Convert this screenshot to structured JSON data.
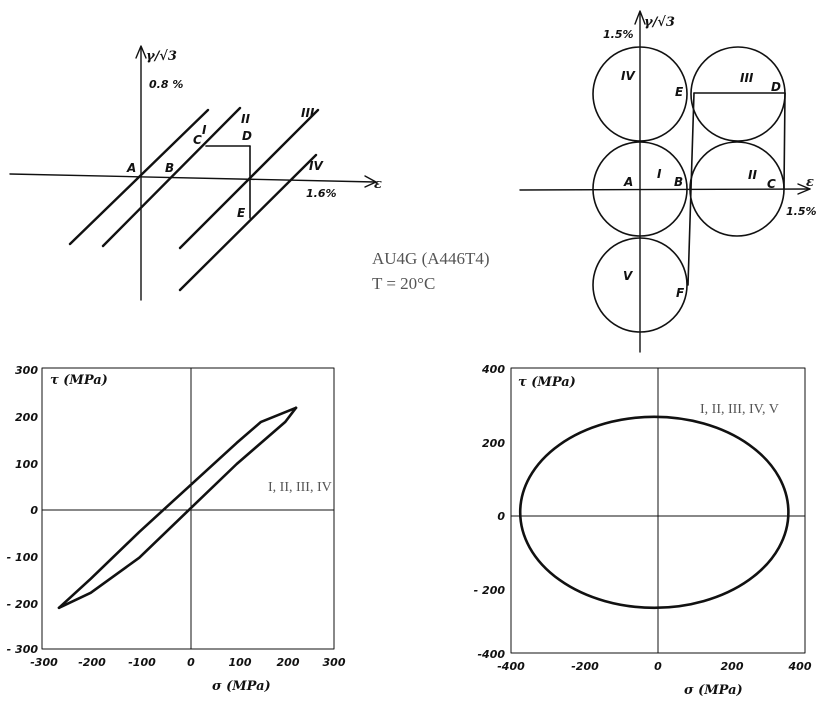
{
  "material": "AU4G (A446T4)",
  "temperature": "T = 20°C",
  "strain_paths": {
    "left": {
      "y_axis": "γ/√3",
      "y_mark": "0.8 %",
      "x_axis": "ε",
      "x_mark": "1.6%",
      "points": [
        "A",
        "B",
        "C",
        "D",
        "E"
      ],
      "branches": [
        "I",
        "II",
        "III",
        "IV"
      ]
    },
    "right": {
      "y_axis": "γ/√3",
      "y_mark": "1.5%",
      "x_axis": "ε",
      "x_mark": "1.5%",
      "points": [
        "A",
        "B",
        "C",
        "D",
        "E",
        "F"
      ],
      "circles": [
        "I",
        "II",
        "III",
        "IV",
        "V"
      ]
    }
  },
  "chart_data": [
    {
      "type": "line",
      "xlabel": "σ (MPa)",
      "ylabel": "τ (MPa)",
      "annotation": "I, II, III, IV",
      "xlim": [
        -300,
        300
      ],
      "ylim": [
        -300,
        300
      ],
      "x_ticks": [
        "-300",
        "-200",
        "-100",
        "0",
        "100",
        "200",
        "300"
      ],
      "y_ticks": [
        "300",
        "200",
        "100",
        "0",
        "- 100",
        "- 200",
        "- 300"
      ],
      "loop_upper": {
        "x": [
          -265,
          -200,
          -100,
          0,
          100,
          150,
          222
        ],
        "y": [
          -212,
          -150,
          -50,
          45,
          140,
          185,
          215
        ]
      },
      "loop_lower": {
        "x": [
          222,
          200,
          100,
          0,
          -100,
          -200,
          -265
        ],
        "y": [
          215,
          185,
          95,
          -5,
          -105,
          -180,
          -212
        ]
      }
    },
    {
      "type": "line",
      "xlabel": "σ (MPa)",
      "ylabel": "τ (MPa)",
      "annotation": "I, II, III, IV, V",
      "xlim": [
        -400,
        400
      ],
      "ylim": [
        -400,
        400
      ],
      "x_ticks": [
        "-400",
        "-200",
        "0",
        "200",
        "400"
      ],
      "y_ticks": [
        "400",
        "200",
        "0",
        "- 200",
        "-400"
      ],
      "ellipse": {
        "center": [
          -10,
          -5
        ],
        "semi_x": 365,
        "semi_y": 268
      }
    }
  ]
}
